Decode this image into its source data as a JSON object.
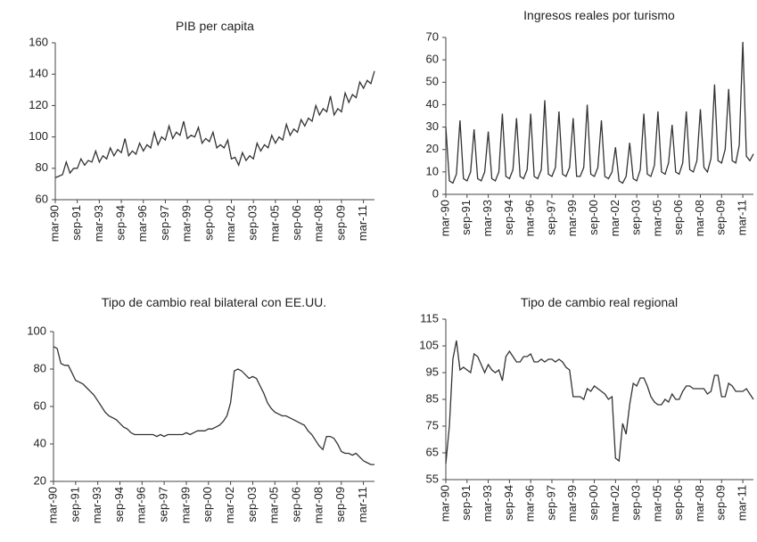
{
  "chart_data": [
    {
      "type": "line",
      "title": "PIB per capita",
      "categories": [
        "mar-90",
        null,
        null,
        null,
        null,
        null,
        "sep-91",
        null,
        null,
        null,
        null,
        null,
        "mar-93",
        null,
        null,
        null,
        null,
        null,
        "sep-94",
        null,
        null,
        null,
        null,
        null,
        "mar-96",
        null,
        null,
        null,
        null,
        null,
        "sep-97",
        null,
        null,
        null,
        null,
        null,
        "mar-99",
        null,
        null,
        null,
        null,
        null,
        "sep-00",
        null,
        null,
        null,
        null,
        null,
        "mar-02",
        null,
        null,
        null,
        null,
        null,
        "sep-03",
        null,
        null,
        null,
        null,
        null,
        "mar-05",
        null,
        null,
        null,
        null,
        null,
        "sep-06",
        null,
        null,
        null,
        null,
        null,
        "mar-08",
        null,
        null,
        null,
        null,
        null,
        "sep-09",
        null,
        null,
        null,
        null,
        null,
        "mar-11",
        null,
        null,
        null
      ],
      "values": [
        74,
        75,
        76,
        84,
        77,
        80,
        80,
        86,
        82,
        85,
        84,
        91,
        84,
        88,
        86,
        93,
        88,
        92,
        90,
        99,
        88,
        91,
        89,
        96,
        91,
        95,
        93,
        103,
        95,
        100,
        98,
        107,
        99,
        103,
        101,
        110,
        99,
        101,
        100,
        106,
        96,
        99,
        97,
        103,
        93,
        95,
        93,
        98,
        86,
        87,
        82,
        90,
        85,
        88,
        86,
        96,
        91,
        95,
        93,
        101,
        96,
        100,
        98,
        108,
        101,
        105,
        103,
        111,
        107,
        112,
        110,
        120,
        114,
        118,
        116,
        126,
        114,
        118,
        116,
        128,
        122,
        127,
        125,
        135,
        131,
        136,
        134,
        142
      ],
      "color": "#333333",
      "ylim": [
        60,
        160
      ],
      "yticks": [
        60,
        80,
        100,
        120,
        140,
        160
      ]
    },
    {
      "type": "line",
      "title": "Ingresos reales por turismo",
      "categories": [
        "mar-90",
        null,
        null,
        null,
        null,
        null,
        "sep-91",
        null,
        null,
        null,
        null,
        null,
        "mar-93",
        null,
        null,
        null,
        null,
        null,
        "sep-94",
        null,
        null,
        null,
        null,
        null,
        "mar-96",
        null,
        null,
        null,
        null,
        null,
        "sep-97",
        null,
        null,
        null,
        null,
        null,
        "mar-99",
        null,
        null,
        null,
        null,
        null,
        "sep-00",
        null,
        null,
        null,
        null,
        null,
        "mar-02",
        null,
        null,
        null,
        null,
        null,
        "sep-03",
        null,
        null,
        null,
        null,
        null,
        "mar-05",
        null,
        null,
        null,
        null,
        null,
        "sep-06",
        null,
        null,
        null,
        null,
        null,
        "mar-08",
        null,
        null,
        null,
        null,
        null,
        "sep-09",
        null,
        null,
        null,
        null,
        null,
        "mar-11",
        null,
        null,
        null
      ],
      "values": [
        30,
        6,
        5,
        9,
        33,
        7,
        6,
        10,
        29,
        7,
        6,
        10,
        28,
        7,
        6,
        10,
        36,
        8,
        7,
        11,
        34,
        8,
        7,
        11,
        36,
        8,
        7,
        11,
        42,
        9,
        8,
        12,
        37,
        9,
        8,
        12,
        34,
        8,
        8,
        12,
        40,
        9,
        8,
        12,
        33,
        8,
        7,
        10,
        21,
        6,
        5,
        8,
        23,
        7,
        6,
        11,
        36,
        9,
        8,
        13,
        37,
        10,
        9,
        14,
        31,
        10,
        9,
        14,
        37,
        11,
        10,
        15,
        38,
        12,
        10,
        16,
        49,
        15,
        14,
        20,
        47,
        15,
        14,
        22,
        68,
        17,
        15,
        18
      ],
      "color": "#333333",
      "ylim": [
        0,
        70
      ],
      "yticks": [
        0,
        10,
        20,
        30,
        40,
        50,
        60,
        70
      ]
    },
    {
      "type": "line",
      "title": "Tipo de cambio real bilateral con EE.UU.",
      "categories": [
        "mar-90",
        null,
        null,
        null,
        null,
        null,
        "sep-91",
        null,
        null,
        null,
        null,
        null,
        "mar-93",
        null,
        null,
        null,
        null,
        null,
        "sep-94",
        null,
        null,
        null,
        null,
        null,
        "mar-96",
        null,
        null,
        null,
        null,
        null,
        "sep-97",
        null,
        null,
        null,
        null,
        null,
        "mar-99",
        null,
        null,
        null,
        null,
        null,
        "sep-00",
        null,
        null,
        null,
        null,
        null,
        "mar-02",
        null,
        null,
        null,
        null,
        null,
        "sep-03",
        null,
        null,
        null,
        null,
        null,
        "mar-05",
        null,
        null,
        null,
        null,
        null,
        "sep-06",
        null,
        null,
        null,
        null,
        null,
        "mar-08",
        null,
        null,
        null,
        null,
        null,
        "sep-09",
        null,
        null,
        null,
        null,
        null,
        "mar-11",
        null,
        null,
        null
      ],
      "values": [
        92,
        91,
        83,
        82,
        82,
        78,
        74,
        73,
        72,
        70,
        68,
        66,
        63,
        60,
        57,
        55,
        54,
        53,
        51,
        49,
        48,
        46,
        45,
        45,
        45,
        45,
        45,
        45,
        44,
        45,
        44,
        45,
        45,
        45,
        45,
        45,
        46,
        45,
        46,
        47,
        47,
        47,
        48,
        48,
        49,
        50,
        52,
        55,
        62,
        79,
        80,
        79,
        77,
        75,
        76,
        75,
        71,
        67,
        62,
        59,
        57,
        56,
        55,
        55,
        54,
        53,
        52,
        51,
        50,
        47,
        45,
        42,
        39,
        37,
        44,
        44,
        43,
        40,
        36,
        35,
        35,
        34,
        35,
        33,
        31,
        30,
        29,
        29
      ],
      "color": "#333333",
      "ylim": [
        20,
        100
      ],
      "yticks": [
        20,
        40,
        60,
        80,
        100
      ]
    },
    {
      "type": "line",
      "title": "Tipo de cambio real regional",
      "categories": [
        "mar-90",
        null,
        null,
        null,
        null,
        null,
        "sep-91",
        null,
        null,
        null,
        null,
        null,
        "mar-93",
        null,
        null,
        null,
        null,
        null,
        "sep-94",
        null,
        null,
        null,
        null,
        null,
        "mar-96",
        null,
        null,
        null,
        null,
        null,
        "sep-97",
        null,
        null,
        null,
        null,
        null,
        "mar-99",
        null,
        null,
        null,
        null,
        null,
        "sep-00",
        null,
        null,
        null,
        null,
        null,
        "mar-02",
        null,
        null,
        null,
        null,
        null,
        "sep-03",
        null,
        null,
        null,
        null,
        null,
        "mar-05",
        null,
        null,
        null,
        null,
        null,
        "sep-06",
        null,
        null,
        null,
        null,
        null,
        "mar-08",
        null,
        null,
        null,
        null,
        null,
        "sep-09",
        null,
        null,
        null,
        null,
        null,
        "mar-11",
        null,
        null,
        null
      ],
      "values": [
        61,
        75,
        100,
        107,
        96,
        97,
        96,
        95,
        102,
        101,
        98,
        95,
        98,
        96,
        95,
        96,
        92,
        101,
        103,
        101,
        99,
        99,
        101,
        101,
        102,
        99,
        99,
        100,
        99,
        100,
        100,
        99,
        100,
        99,
        97,
        96,
        86,
        86,
        86,
        85,
        89,
        88,
        90,
        89,
        88,
        87,
        85,
        86,
        63,
        62,
        76,
        72,
        83,
        91,
        90,
        93,
        93,
        90,
        86,
        84,
        83,
        83,
        85,
        84,
        87,
        85,
        85,
        88,
        90,
        90,
        89,
        89,
        89,
        89,
        87,
        88,
        94,
        94,
        86,
        86,
        91,
        90,
        88,
        88,
        88,
        89,
        87,
        85
      ],
      "color": "#333333",
      "ylim": [
        55,
        115
      ],
      "yticks": [
        55,
        65,
        75,
        85,
        95,
        105,
        115
      ]
    }
  ]
}
